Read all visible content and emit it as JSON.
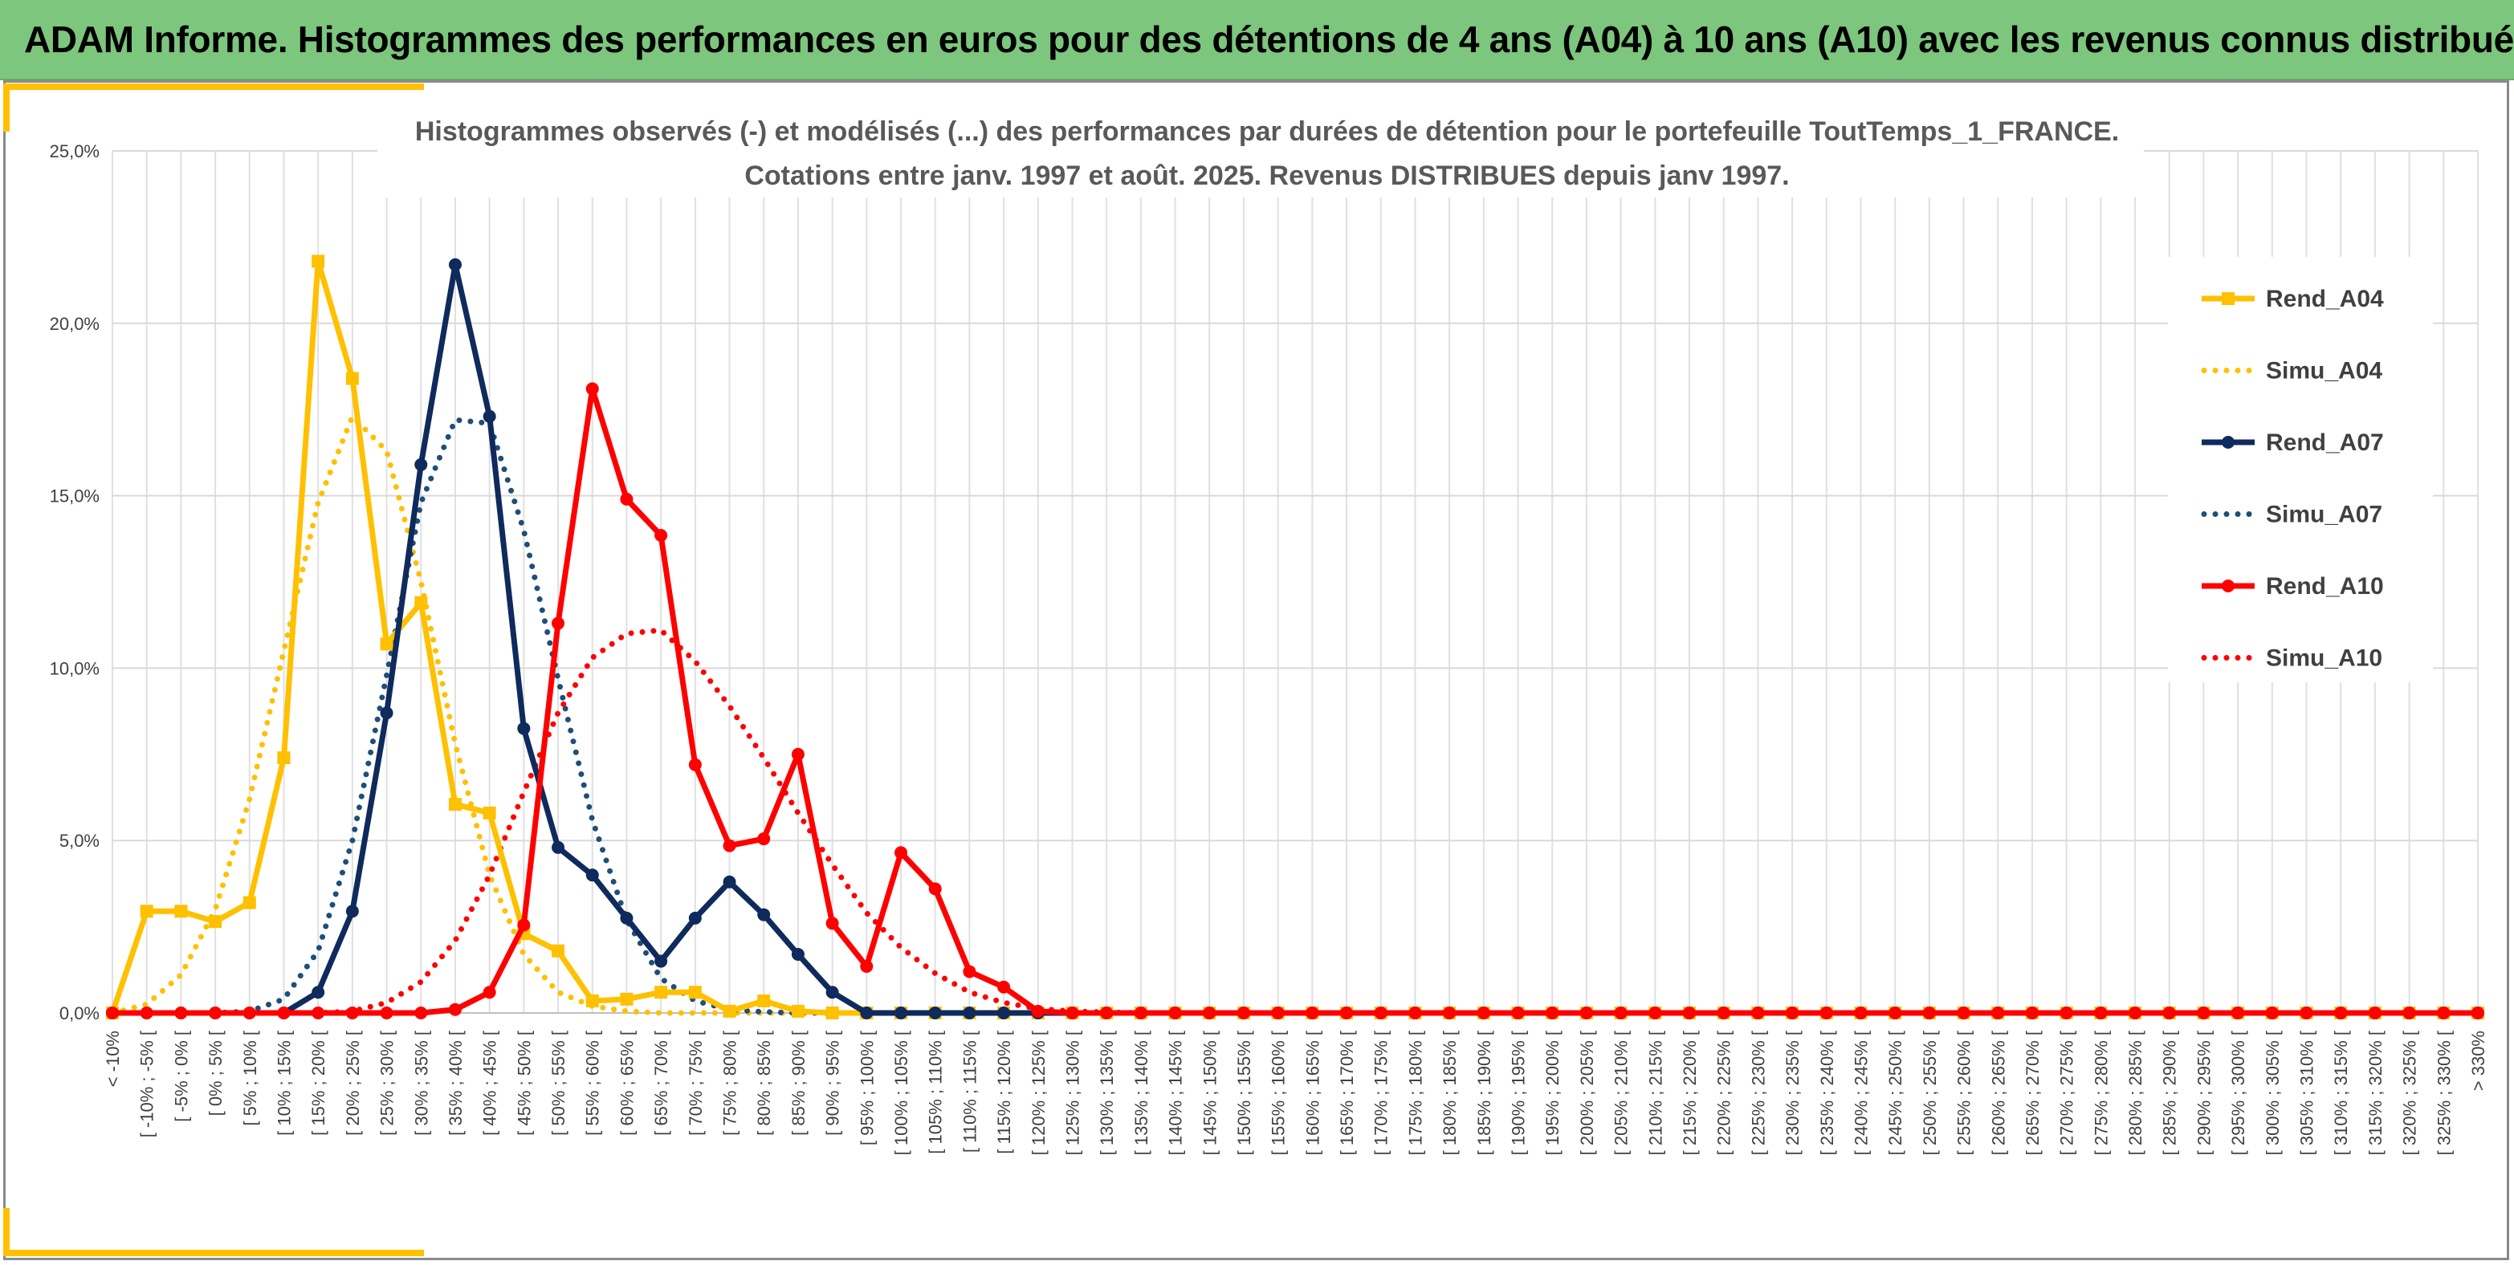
{
  "banner": {
    "title": "ADAM Informe. Histogrammes des performances en euros pour des détentions de 4 ans (A04) à 10 ans (A10) avec les revenus connus distribués"
  },
  "chart_data": {
    "type": "line",
    "title_line1": "Histogrammes observés (-) et modélisés (...) des performances par durées de détention pour le portefeuille ToutTemps_1_FRANCE.",
    "title_line2": "Cotations entre janv. 1997 et août. 2025. Revenus DISTRIBUES depuis janv 1997.",
    "ylim": [
      0,
      25
    ],
    "yticks": [
      "0,0%",
      "5,0%",
      "10,0%",
      "15,0%",
      "20,0%",
      "25,0%"
    ],
    "ytick_values": [
      0,
      5,
      10,
      15,
      20,
      25
    ],
    "grid": true,
    "legend_position": "right",
    "categories": [
      "< -10%",
      "[ -10% ; -5% [",
      "[ -5% ; 0% [",
      "[ 0% ; 5% [",
      "[ 5% ; 10% [",
      "[ 10% ; 15% [",
      "[ 15% ; 20% [",
      "[ 20% ; 25% [",
      "[ 25% ; 30% [",
      "[ 30% ; 35% [",
      "[ 35% ; 40% [",
      "[ 40% ; 45% [",
      "[ 45% ; 50% [",
      "[ 50% ; 55% [",
      "[ 55% ; 60% [",
      "[ 60% ; 65% [",
      "[ 65% ; 70% [",
      "[ 70% ; 75% [",
      "[ 75% ; 80% [",
      "[ 80% ; 85% [",
      "[ 85% ; 90% [",
      "[ 90% ; 95% [",
      "[ 95% ; 100% [",
      "[ 100% ; 105% [",
      "[ 105% ; 110% [",
      "[ 110% ; 115% [",
      "[ 115% ; 120% [",
      "[ 120% ; 125% [",
      "[ 125% ; 130% [",
      "[ 130% ; 135% [",
      "[ 135% ; 140% [",
      "[ 140% ; 145% [",
      "[ 145% ; 150% [",
      "[ 150% ; 155% [",
      "[ 155% ; 160% [",
      "[ 160% ; 165% [",
      "[ 165% ; 170% [",
      "[ 170% ; 175% [",
      "[ 175% ; 180% [",
      "[ 180% ; 185% [",
      "[ 185% ; 190% [",
      "[ 190% ; 195% [",
      "[ 195% ; 200% [",
      "[ 200% ; 205% [",
      "[ 205% ; 210% [",
      "[ 210% ; 215% [",
      "[ 215% ; 220% [",
      "[ 220% ; 225% [",
      "[ 225% ; 230% [",
      "[ 230% ; 235% [",
      "[ 235% ; 240% [",
      "[ 240% ; 245% [",
      "[ 245% ; 250% [",
      "[ 250% ; 255% [",
      "[ 255% ; 260% [",
      "[ 260% ; 265% [",
      "[ 265% ; 270% [",
      "[ 270% ; 275% [",
      "[ 275% ; 280% [",
      "[ 280% ; 285% [",
      "[ 285% ; 290% [",
      "[ 290% ; 295% [",
      "[ 295% ; 300% [",
      "[ 300% ; 305% [",
      "[ 305% ; 310% [",
      "[ 310% ; 315% [",
      "[ 315% ; 320% [",
      "[ 320% ; 325% [",
      "[ 325% ; 330% [",
      "> 330%"
    ],
    "series": [
      {
        "name": "Rend_A04",
        "style": "solid",
        "marker": "square",
        "color": "#FFC000",
        "values": [
          0,
          2.95,
          2.95,
          2.65,
          3.2,
          7.4,
          21.8,
          18.4,
          10.7,
          11.9,
          6.05,
          5.8,
          2.3,
          1.8,
          0.35,
          0.4,
          0.6,
          0.6,
          0.05,
          0.35,
          0.05,
          0,
          0,
          0,
          0,
          0,
          0,
          0,
          0,
          0,
          0,
          0,
          0,
          0,
          0,
          0,
          0,
          0,
          0,
          0,
          0,
          0,
          0,
          0,
          0,
          0,
          0,
          0,
          0,
          0,
          0,
          0,
          0,
          0,
          0,
          0,
          0,
          0,
          0,
          0,
          0,
          0,
          0,
          0,
          0,
          0,
          0,
          0,
          0,
          0
        ]
      },
      {
        "name": "Simu_A04",
        "style": "dotted",
        "marker": "none",
        "color": "#FFC000",
        "values": [
          0,
          0.25,
          1.1,
          3.0,
          6.2,
          10.5,
          14.8,
          17.3,
          16.3,
          12.5,
          7.8,
          4.0,
          1.7,
          0.6,
          0.2,
          0.05,
          0,
          0,
          0,
          0,
          0,
          0,
          0,
          0,
          0,
          0,
          0,
          0,
          0,
          0,
          0,
          0,
          0,
          0,
          0,
          0,
          0,
          0,
          0,
          0,
          0,
          0,
          0,
          0,
          0,
          0,
          0,
          0,
          0,
          0,
          0,
          0,
          0,
          0,
          0,
          0,
          0,
          0,
          0,
          0,
          0,
          0,
          0,
          0,
          0,
          0,
          0,
          0,
          0,
          0
        ]
      },
      {
        "name": "Rend_A07",
        "style": "solid",
        "marker": "circle",
        "color": "#0F2A5C",
        "values": [
          0,
          0,
          0,
          0,
          0,
          0,
          0.6,
          2.95,
          8.7,
          15.9,
          21.7,
          17.3,
          8.25,
          4.8,
          4.0,
          2.75,
          1.5,
          2.75,
          3.8,
          2.85,
          1.7,
          0.6,
          0,
          0,
          0,
          0,
          0,
          0,
          0,
          0,
          0,
          0,
          0,
          0,
          0,
          0,
          0,
          0,
          0,
          0,
          0,
          0,
          0,
          0,
          0,
          0,
          0,
          0,
          0,
          0,
          0,
          0,
          0,
          0,
          0,
          0,
          0,
          0,
          0,
          0,
          0,
          0,
          0,
          0,
          0,
          0,
          0,
          0,
          0,
          0
        ]
      },
      {
        "name": "Simu_A07",
        "style": "dotted",
        "marker": "none",
        "color": "#1F4E79",
        "values": [
          0,
          0,
          0,
          0,
          0.05,
          0.4,
          1.8,
          5.0,
          9.8,
          14.8,
          17.2,
          17.1,
          14.0,
          9.7,
          5.6,
          2.7,
          1.0,
          0.35,
          0.1,
          0.03,
          0,
          0,
          0,
          0,
          0,
          0,
          0,
          0,
          0,
          0,
          0,
          0,
          0,
          0,
          0,
          0,
          0,
          0,
          0,
          0,
          0,
          0,
          0,
          0,
          0,
          0,
          0,
          0,
          0,
          0,
          0,
          0,
          0,
          0,
          0,
          0,
          0,
          0,
          0,
          0,
          0,
          0,
          0,
          0,
          0,
          0,
          0,
          0,
          0,
          0
        ]
      },
      {
        "name": "Rend_A10",
        "style": "solid",
        "marker": "circle",
        "color": "#FF0000",
        "values": [
          0,
          0,
          0,
          0,
          0,
          0,
          0,
          0,
          0,
          0,
          0.1,
          0.6,
          2.55,
          11.3,
          18.1,
          14.9,
          13.85,
          7.2,
          4.85,
          5.05,
          7.5,
          2.6,
          1.35,
          4.65,
          3.6,
          1.2,
          0.75,
          0.05,
          0,
          0,
          0,
          0,
          0,
          0,
          0,
          0,
          0,
          0,
          0,
          0,
          0,
          0,
          0,
          0,
          0,
          0,
          0,
          0,
          0,
          0,
          0,
          0,
          0,
          0,
          0,
          0,
          0,
          0,
          0,
          0,
          0,
          0,
          0,
          0,
          0,
          0,
          0,
          0,
          0,
          0
        ]
      },
      {
        "name": "Simu_A10",
        "style": "dotted",
        "marker": "none",
        "color": "#FF0000",
        "values": [
          0,
          0,
          0,
          0,
          0,
          0,
          0,
          0.05,
          0.3,
          0.9,
          2.1,
          4.0,
          6.4,
          8.7,
          10.3,
          11.0,
          11.1,
          10.2,
          8.9,
          7.4,
          5.8,
          4.3,
          2.9,
          1.9,
          1.15,
          0.6,
          0.3,
          0.12,
          0.05,
          0.02,
          0,
          0,
          0,
          0,
          0,
          0,
          0,
          0,
          0,
          0,
          0,
          0,
          0,
          0,
          0,
          0,
          0,
          0,
          0,
          0,
          0,
          0,
          0,
          0,
          0,
          0,
          0,
          0,
          0,
          0,
          0,
          0,
          0,
          0,
          0,
          0,
          0,
          0,
          0,
          0
        ]
      }
    ]
  }
}
